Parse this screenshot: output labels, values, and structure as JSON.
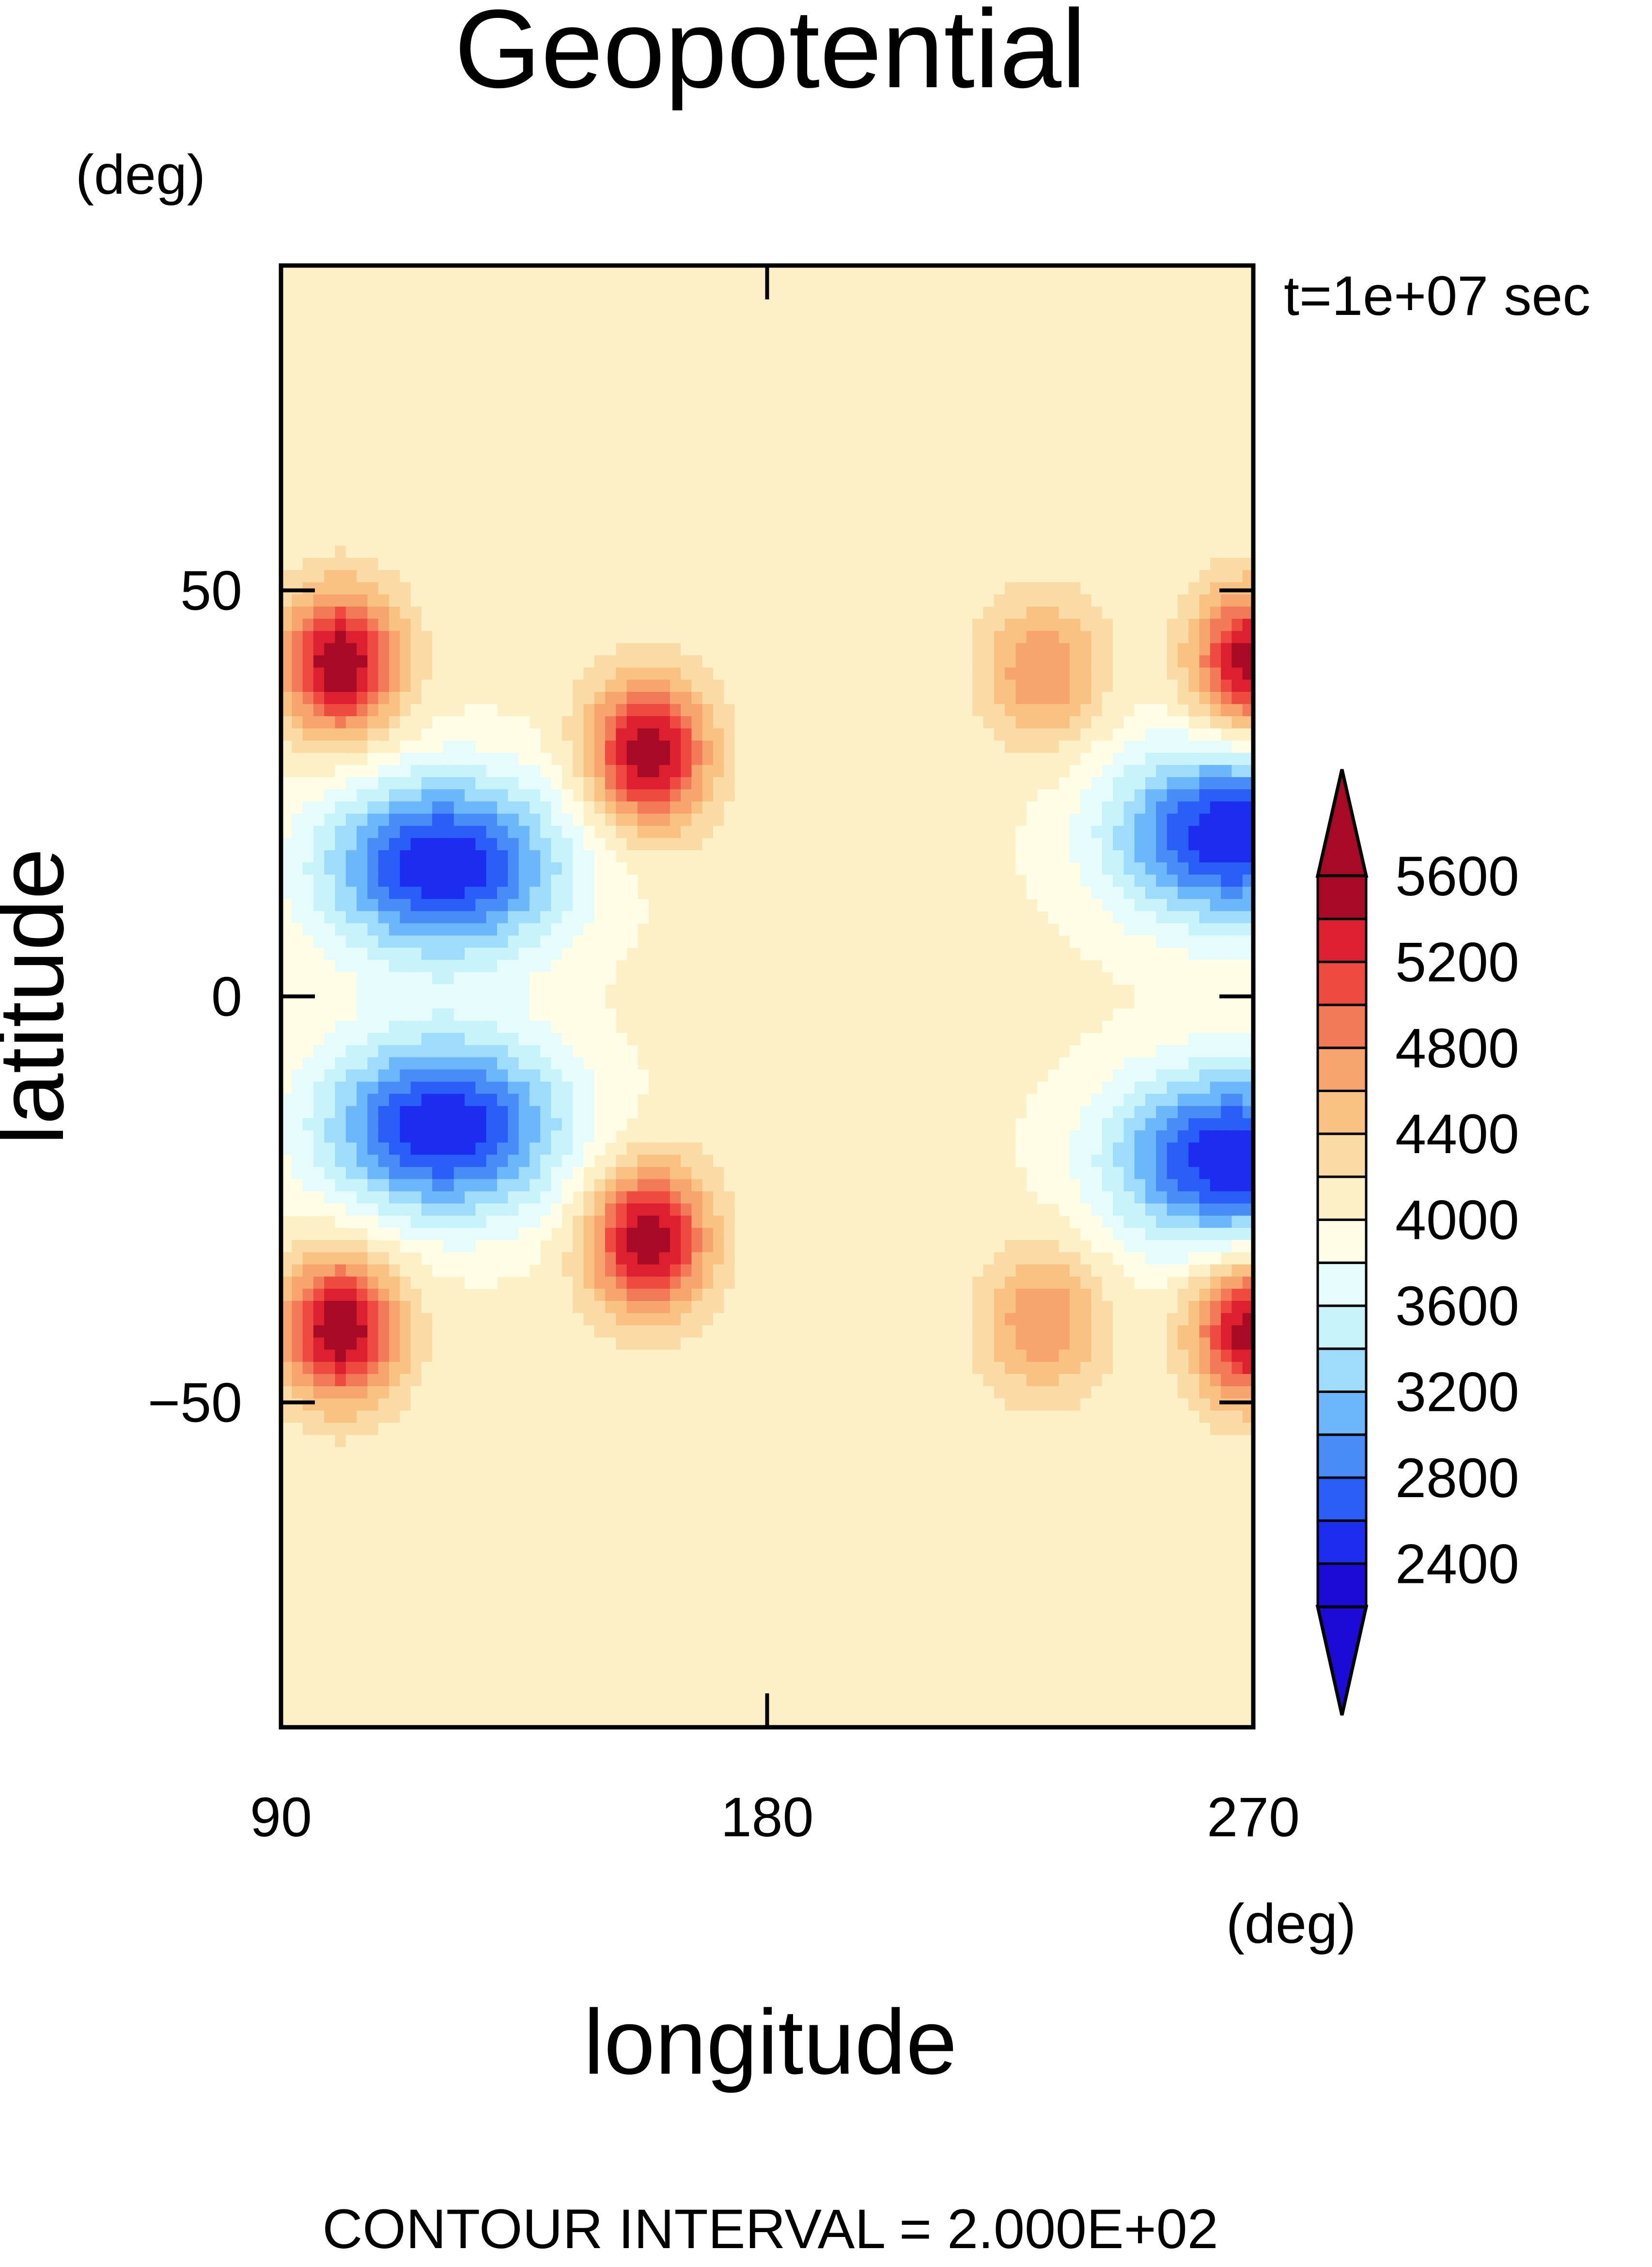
{
  "chart_data": {
    "type": "contour",
    "title": "Geopotential",
    "xlabel": "longitude",
    "ylabel": "latitude",
    "x_unit": "(deg)",
    "y_unit": "(deg)",
    "time_label": "t=1e+07 sec",
    "footer": "CONTOUR INTERVAL = 2.000E+02",
    "xlim": [
      90,
      270
    ],
    "ylim": [
      -90,
      90
    ],
    "x_ticks": [
      90,
      180,
      270
    ],
    "x_tick_labels": [
      "90",
      "180",
      "270"
    ],
    "y_ticks": [
      50,
      0,
      -50
    ],
    "y_tick_labels": [
      "50",
      "0",
      "−50"
    ],
    "contour_interval": 200,
    "colorbar": {
      "levels": [
        2400,
        2600,
        2800,
        3000,
        3200,
        3400,
        3600,
        3800,
        4000,
        4200,
        4400,
        4600,
        4800,
        5000,
        5200,
        5400,
        5600
      ],
      "tick_values": [
        5600,
        5200,
        4800,
        4400,
        4000,
        3600,
        3200,
        2800,
        2400
      ],
      "tick_labels": [
        "5600",
        "5200",
        "4800",
        "4400",
        "4000",
        "3600",
        "3200",
        "2800",
        "2400"
      ],
      "colors": [
        "#1c0bd6",
        "#1c2df0",
        "#2a5ef8",
        "#4a8cf7",
        "#6cb6fb",
        "#9fdcfc",
        "#c9f3fb",
        "#e6fbfb",
        "#fffde6",
        "#fdf0c6",
        "#fbdba5",
        "#fac282",
        "#f7a46e",
        "#f27a58",
        "#ee4a40",
        "#dd2030",
        "#a80a26"
      ],
      "under_color": "#1c0bd6",
      "over_color": "#a80a26"
    },
    "features": [
      {
        "type": "high",
        "lon": 101,
        "lat": 41,
        "value": 5600
      },
      {
        "type": "high",
        "lon": 101,
        "lat": -41,
        "value": 5600
      },
      {
        "type": "high",
        "lon": 158,
        "lat": 30,
        "value": 5600
      },
      {
        "type": "high",
        "lon": 158,
        "lat": -30,
        "value": 5600
      },
      {
        "type": "high",
        "lon": 231,
        "lat": 40,
        "value": 4800
      },
      {
        "type": "high",
        "lon": 231,
        "lat": -40,
        "value": 4800
      },
      {
        "type": "high",
        "lon": 270,
        "lat": 41,
        "value": 5600
      },
      {
        "type": "high",
        "lon": 270,
        "lat": -41,
        "value": 5600
      },
      {
        "type": "low",
        "lon": 120,
        "lat": 16,
        "value": 2400
      },
      {
        "type": "low",
        "lon": 120,
        "lat": -16,
        "value": 2400
      },
      {
        "type": "low",
        "lon": 266,
        "lat": 20,
        "value": 2400
      },
      {
        "type": "low",
        "lon": 266,
        "lat": -20,
        "value": 2400
      }
    ]
  }
}
